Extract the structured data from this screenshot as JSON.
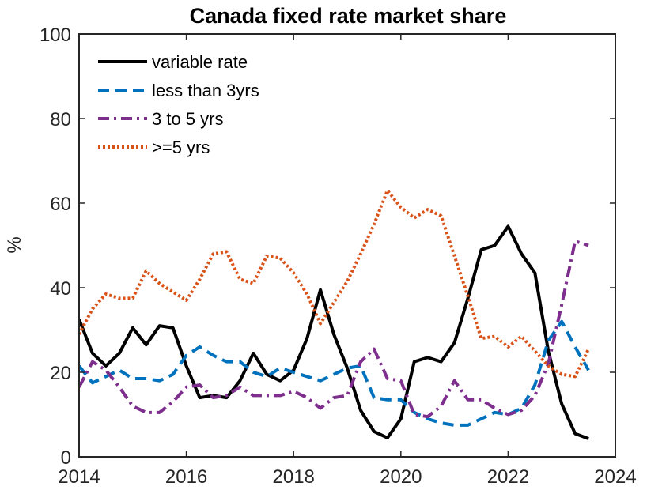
{
  "chart_data": {
    "type": "line",
    "title": "Canada fixed rate market share",
    "xlabel": "",
    "ylabel": "%",
    "xlim": [
      2014,
      2024
    ],
    "ylim": [
      0,
      100
    ],
    "x_ticks": [
      2014,
      2016,
      2018,
      2020,
      2022,
      2024
    ],
    "y_ticks": [
      0,
      20,
      40,
      60,
      80,
      100
    ],
    "x_tick_labels": [
      "2014",
      "2016",
      "2018",
      "2020",
      "2022",
      "2024"
    ],
    "y_tick_labels": [
      "0",
      "20",
      "40",
      "60",
      "80",
      "100"
    ],
    "legend_position": "top-left",
    "grid": false,
    "series": [
      {
        "name": "variable rate",
        "color": "#000000",
        "dash": "solid",
        "x": [
          2014.0,
          2014.25,
          2014.5,
          2014.75,
          2015.0,
          2015.25,
          2015.5,
          2015.75,
          2016.0,
          2016.25,
          2016.5,
          2016.75,
          2017.0,
          2017.25,
          2017.5,
          2017.75,
          2018.0,
          2018.25,
          2018.5,
          2018.75,
          2019.0,
          2019.25,
          2019.5,
          2019.75,
          2020.0,
          2020.25,
          2020.5,
          2020.75,
          2021.0,
          2021.25,
          2021.5,
          2021.75,
          2022.0,
          2022.25,
          2022.5,
          2022.75,
          2023.0,
          2023.25,
          2023.5
        ],
        "values": [
          32.5,
          24.5,
          21.5,
          24.5,
          30.5,
          26.5,
          31,
          30.5,
          21.5,
          14,
          14.5,
          14,
          18,
          24.5,
          19.5,
          18,
          20.5,
          28,
          39.5,
          29,
          21,
          11,
          6,
          4.5,
          9,
          22.5,
          23.5,
          22.5,
          27,
          37.5,
          49,
          50,
          54.5,
          48,
          43.5,
          25,
          12.5,
          5.5,
          4.3
        ]
      },
      {
        "name": "less than 3yrs",
        "color": "#0072bd",
        "dash": "dashed",
        "x": [
          2014.0,
          2014.25,
          2014.5,
          2014.75,
          2015.0,
          2015.25,
          2015.5,
          2015.75,
          2016.0,
          2016.25,
          2016.5,
          2016.75,
          2017.0,
          2017.25,
          2017.5,
          2017.75,
          2018.0,
          2018.25,
          2018.5,
          2018.75,
          2019.0,
          2019.25,
          2019.5,
          2019.75,
          2020.0,
          2020.25,
          2020.5,
          2020.75,
          2021.0,
          2021.25,
          2021.5,
          2021.75,
          2022.0,
          2022.25,
          2022.5,
          2022.75,
          2023.0,
          2023.25,
          2023.5
        ],
        "values": [
          21.5,
          17.5,
          19,
          20.5,
          18.5,
          18.5,
          18,
          19.5,
          24,
          26,
          24,
          22.5,
          22.5,
          20,
          19,
          21,
          20,
          19,
          18,
          19.5,
          21,
          21.5,
          14,
          13.5,
          13.5,
          10.5,
          9,
          8,
          7.5,
          7.5,
          9,
          10.5,
          10,
          11.5,
          17,
          27.5,
          32,
          26,
          20.5
        ]
      },
      {
        "name": "3 to 5 yrs",
        "color": "#7e2f8e",
        "dash": "dashdot",
        "x": [
          2014.0,
          2014.25,
          2014.5,
          2014.75,
          2015.0,
          2015.25,
          2015.5,
          2015.75,
          2016.0,
          2016.25,
          2016.5,
          2016.75,
          2017.0,
          2017.25,
          2017.5,
          2017.75,
          2018.0,
          2018.25,
          2018.5,
          2018.75,
          2019.0,
          2019.25,
          2019.5,
          2019.75,
          2020.0,
          2020.25,
          2020.5,
          2020.75,
          2021.0,
          2021.25,
          2021.5,
          2021.75,
          2022.0,
          2022.25,
          2022.5,
          2022.75,
          2023.0,
          2023.25,
          2023.5
        ],
        "values": [
          16.5,
          22.5,
          20.5,
          16.5,
          12,
          10.5,
          10.5,
          13,
          16.5,
          17,
          14,
          14.5,
          16.5,
          14.5,
          14.5,
          14.5,
          15.5,
          14,
          11.5,
          14,
          14.5,
          22.5,
          25.5,
          18.5,
          18,
          10,
          9.5,
          12,
          18,
          13.5,
          13.5,
          11.5,
          10,
          11,
          14.5,
          22,
          36,
          51,
          50
        ]
      },
      {
        "name": ">=5 yrs",
        "color": "#d95319",
        "dash": "dotted",
        "x": [
          2014.0,
          2014.25,
          2014.5,
          2014.75,
          2015.0,
          2015.25,
          2015.5,
          2015.75,
          2016.0,
          2016.25,
          2016.5,
          2016.75,
          2017.0,
          2017.25,
          2017.5,
          2017.75,
          2018.0,
          2018.25,
          2018.5,
          2018.75,
          2019.0,
          2019.25,
          2019.5,
          2019.75,
          2020.0,
          2020.25,
          2020.5,
          2020.75,
          2021.0,
          2021.25,
          2021.5,
          2021.75,
          2022.0,
          2022.25,
          2022.5,
          2022.75,
          2023.0,
          2023.25,
          2023.5
        ],
        "values": [
          29,
          35,
          38.5,
          37.5,
          37.5,
          44,
          41,
          39,
          37,
          42,
          48,
          48.5,
          42,
          41,
          47.5,
          47,
          43.5,
          38.5,
          31.5,
          36.5,
          41.5,
          48,
          55,
          63,
          59,
          56.5,
          58.5,
          57,
          47.5,
          38,
          28,
          28.5,
          26,
          28.5,
          25,
          21.5,
          19.5,
          19,
          25.5
        ]
      }
    ]
  }
}
